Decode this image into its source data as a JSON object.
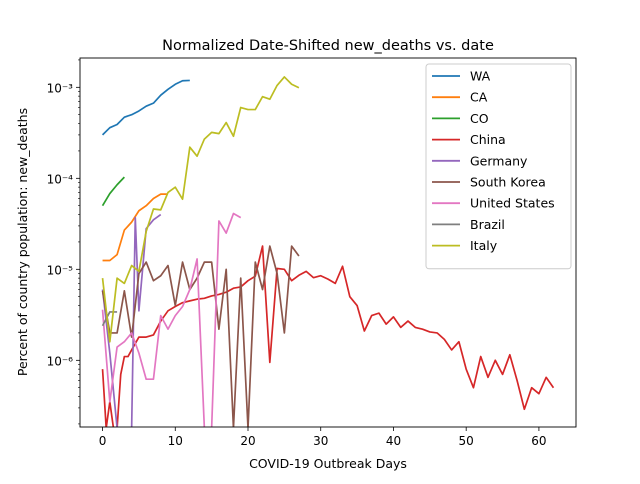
{
  "chart_data": {
    "type": "line",
    "title": "Normalized Date-Shifted new_deaths vs. date",
    "xlabel": "COVID-19 Outbreak Days",
    "ylabel": "Percent of country population: new_deaths",
    "xlim": [
      -3.1,
      65.1
    ],
    "ylim": [
      1.85e-07,
      0.0021
    ],
    "yscale": "log",
    "grid": false,
    "legend_position": "top-right",
    "x_ticks": [
      0,
      10,
      20,
      30,
      40,
      50,
      60
    ],
    "x_tick_labels": [
      "0",
      "10",
      "20",
      "30",
      "40",
      "50",
      "60"
    ],
    "y_ticks": [
      1e-06,
      1e-05,
      0.0001,
      0.001
    ],
    "y_tick_labels": [
      "10⁻⁶",
      "10⁻⁵",
      "10⁻⁴",
      "10⁻³"
    ],
    "series": [
      {
        "name": "WA",
        "color": "#1f77b4",
        "x": [
          0,
          1,
          2,
          3,
          4,
          5,
          6,
          7,
          8,
          9,
          10,
          11,
          12
        ],
        "y": [
          0.0003,
          0.00036,
          0.00039,
          0.00047,
          0.0005,
          0.00055,
          0.00062,
          0.00067,
          0.00082,
          0.00095,
          0.00108,
          0.00118,
          0.00119
        ]
      },
      {
        "name": "CA",
        "color": "#ff7f0e",
        "x": [
          0,
          1,
          2,
          3,
          4,
          5,
          6,
          7,
          8,
          9
        ],
        "y": [
          1.25e-05,
          1.25e-05,
          1.45e-05,
          2.7e-05,
          3.3e-05,
          4.4e-05,
          5e-05,
          6e-05,
          6.7e-05,
          6.7e-05
        ]
      },
      {
        "name": "CO",
        "color": "#2ca02c",
        "x": [
          0,
          1,
          2,
          3
        ],
        "y": [
          5e-05,
          6.8e-05,
          8.5e-05,
          0.000103
        ]
      },
      {
        "name": "China",
        "color": "#d62728",
        "x": [
          0,
          0.5,
          1,
          1.5,
          2,
          2.5,
          3,
          3.5,
          4,
          5,
          6,
          7,
          8,
          9,
          10,
          11,
          12,
          13,
          14,
          15,
          16,
          17,
          18,
          19,
          20,
          21,
          22,
          23,
          24,
          25,
          26,
          27,
          28,
          29,
          30,
          31,
          32,
          33,
          34,
          35,
          36,
          37,
          38,
          39,
          40,
          41,
          42,
          43,
          44,
          45,
          46,
          47,
          48,
          49,
          50,
          51,
          52,
          53,
          54,
          55,
          56,
          57,
          58,
          59,
          60,
          61,
          62
        ],
        "y": [
          8e-07,
          1.8e-07,
          3.5e-07,
          1.8e-07,
          1.8e-07,
          7e-07,
          1.1e-06,
          1.1e-06,
          1.3e-06,
          1.8e-06,
          1.8e-06,
          1.9e-06,
          2.7e-06,
          3.5e-06,
          3.9e-06,
          4.3e-06,
          4.5e-06,
          4.7e-06,
          4.8e-06,
          5.1e-06,
          5.3e-06,
          5.6e-06,
          6.2e-06,
          6.4e-06,
          7.5e-06,
          8.4e-06,
          1.8e-05,
          9.5e-07,
          1.02e-05,
          1e-05,
          7.5e-06,
          8.6e-06,
          9.5e-06,
          8.1e-06,
          8.5e-06,
          7.8e-06,
          7e-06,
          1.08e-05,
          5e-06,
          4e-06,
          2.1e-06,
          3.1e-06,
          3.3e-06,
          2.5e-06,
          3e-06,
          2.3e-06,
          2.7e-06,
          2.3e-06,
          2.2e-06,
          2.05e-06,
          2e-06,
          1.7e-06,
          1.3e-06,
          1.6e-06,
          8e-07,
          5e-07,
          1.1e-06,
          6.5e-07,
          1e-06,
          7e-07,
          1.15e-06,
          6e-07,
          2.9e-07,
          5e-07,
          4.3e-07,
          6.5e-07,
          5e-07
        ]
      },
      {
        "name": "Germany",
        "color": "#9467bd",
        "x": [
          0,
          1,
          2,
          3,
          4,
          4.5,
          5,
          6,
          7,
          8
        ],
        "y": [
          6e-06,
          1.2e-06,
          1.8e-07,
          1.8e-07,
          1.8e-07,
          3.7e-05,
          3.5e-06,
          2.8e-05,
          3.5e-05,
          4e-05
        ]
      },
      {
        "name": "South Korea",
        "color": "#8c564b",
        "x": [
          0,
          1,
          2,
          3,
          4,
          5,
          6,
          7,
          8,
          9,
          10,
          11,
          12,
          13,
          14,
          15,
          16,
          17,
          18,
          19,
          20,
          21,
          22,
          23,
          24,
          25,
          26,
          27
        ],
        "y": [
          5.8e-06,
          2e-06,
          2e-06,
          5.8e-06,
          1.8e-06,
          9e-06,
          1.2e-05,
          7.5e-06,
          8.5e-06,
          1.1e-05,
          4e-06,
          1.2e-05,
          6e-06,
          8e-06,
          1.2e-05,
          1.2e-05,
          2.2e-06,
          1e-05,
          1.8e-07,
          8e-06,
          1.8e-07,
          1.2e-05,
          6e-06,
          1.8e-05,
          9e-06,
          2e-06,
          1.8e-05,
          1.4e-05
        ]
      },
      {
        "name": "United States",
        "color": "#e377c2",
        "x": [
          0,
          1,
          2,
          3,
          4,
          5,
          6,
          7,
          8,
          9,
          10,
          11,
          12,
          13,
          14,
          15,
          16,
          17,
          18,
          19
        ],
        "y": [
          3.6e-06,
          3.5e-07,
          1.4e-06,
          1.6e-06,
          2e-06,
          1.2e-06,
          6.2e-07,
          6.2e-07,
          3.1e-06,
          2.2e-06,
          3.1e-06,
          3.9e-06,
          6e-06,
          1.3e-05,
          1.8e-07,
          1.8e-07,
          3.4e-05,
          2.5e-05,
          4.1e-05,
          3.7e-05
        ]
      },
      {
        "name": "Brazil",
        "color": "#7f7f7f",
        "x": [
          0,
          1,
          2
        ],
        "y": [
          2.4e-06,
          3.4e-06,
          3.4e-06
        ]
      },
      {
        "name": "Italy",
        "color": "#bcbd22",
        "x": [
          0,
          1,
          2,
          3,
          4,
          5,
          6,
          7,
          8,
          9,
          10,
          11,
          12,
          13,
          14,
          15,
          16,
          17,
          18,
          19,
          20,
          21,
          22,
          23,
          24,
          25,
          26,
          27
        ],
        "y": [
          8e-06,
          1.6e-06,
          8e-06,
          7e-06,
          1.1e-05,
          9.5e-06,
          2.6e-05,
          4.6e-05,
          4.5e-05,
          7e-05,
          8e-05,
          5.9e-05,
          0.00022,
          0.000175,
          0.00027,
          0.00032,
          0.00031,
          0.00041,
          0.00029,
          0.0006,
          0.00057,
          0.00057,
          0.00079,
          0.00074,
          0.00105,
          0.0013,
          0.00108,
          0.00099
        ]
      }
    ]
  }
}
